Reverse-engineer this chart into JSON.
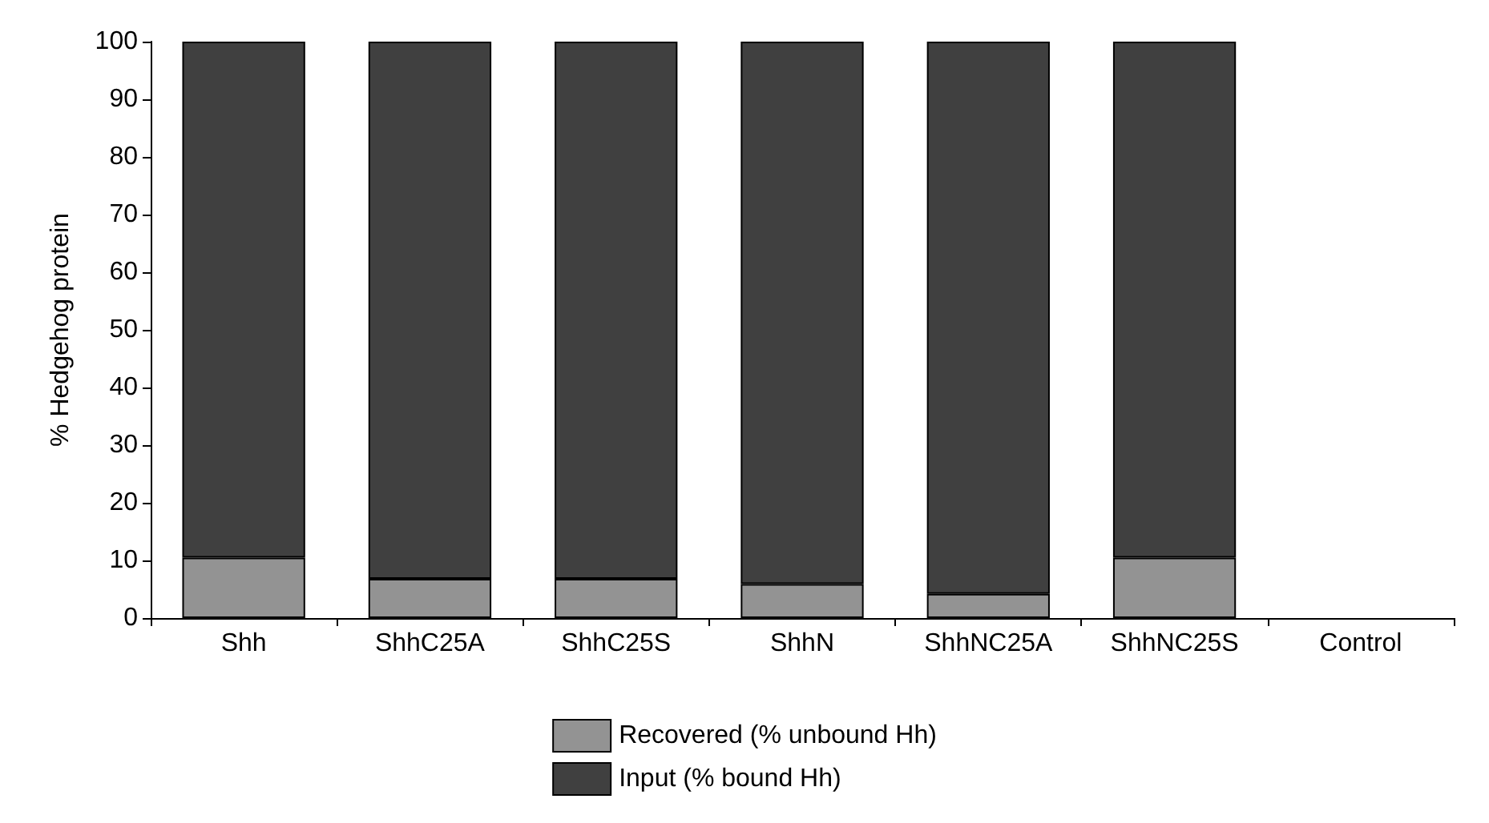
{
  "chart_data": {
    "type": "bar",
    "stacked": true,
    "ylabel": "% Hedgehog protein",
    "categories": [
      "Shh",
      "ShhC25A",
      "ShhC25S",
      "ShhN",
      "ShhNC25A",
      "ShhNC25S",
      "Control"
    ],
    "series": [
      {
        "name": "Recovered (% unbound Hh)",
        "color": "#939393",
        "values": [
          10.5,
          6.8,
          6.8,
          5.9,
          4.2,
          10.5,
          null
        ]
      },
      {
        "name": "Input (% bound Hh)",
        "color": "#404040",
        "values": [
          89.5,
          93.2,
          93.2,
          94.1,
          95.8,
          89.5,
          null
        ]
      }
    ],
    "ylim": [
      0,
      100
    ],
    "yticks": [
      0,
      10,
      20,
      30,
      40,
      50,
      60,
      70,
      80,
      90,
      100
    ],
    "grid": false,
    "legend": "bottom"
  }
}
